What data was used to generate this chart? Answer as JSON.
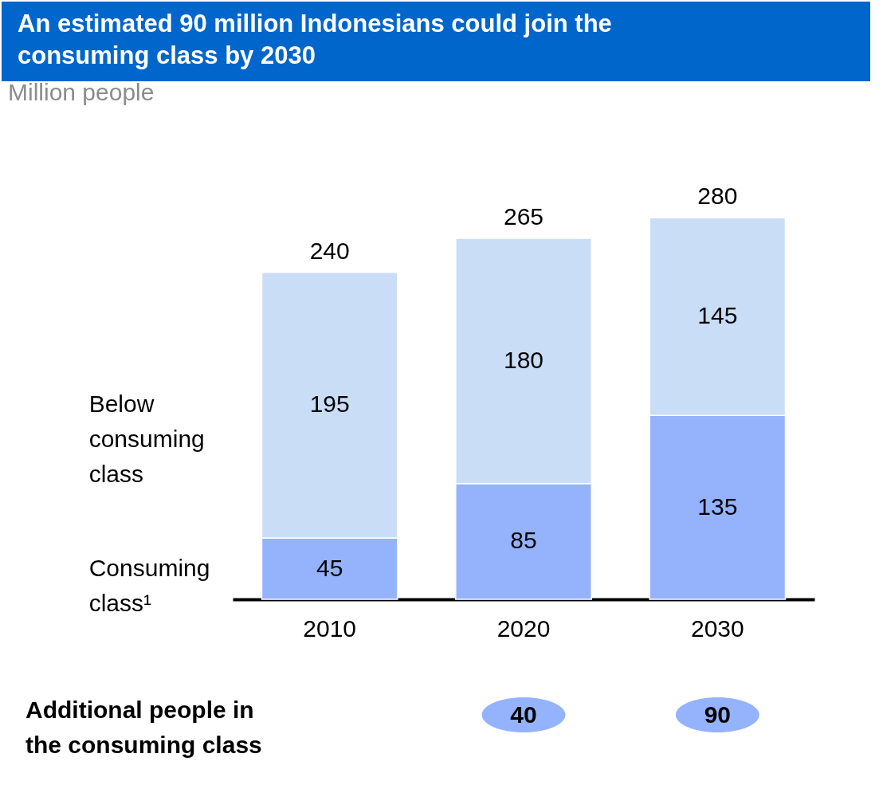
{
  "chart_data": {
    "type": "bar",
    "title": "An estimated 90 million Indonesians could join the consuming class by 2030",
    "subtitle": "Million people",
    "categories": [
      "2010",
      "2020",
      "2030"
    ],
    "stacked": true,
    "series": [
      {
        "name": "Consuming class¹",
        "color": "#94b3fc",
        "values": [
          45,
          85,
          135
        ]
      },
      {
        "name": "Below consuming class",
        "color": "#c9ddf7",
        "values": [
          195,
          180,
          145
        ]
      }
    ],
    "data_labels": true,
    "totals": [
      "240",
      "265",
      "280"
    ],
    "legend": false,
    "annotations": [
      "Additional people in the consuming class",
      "40",
      "90"
    ]
  }
}
